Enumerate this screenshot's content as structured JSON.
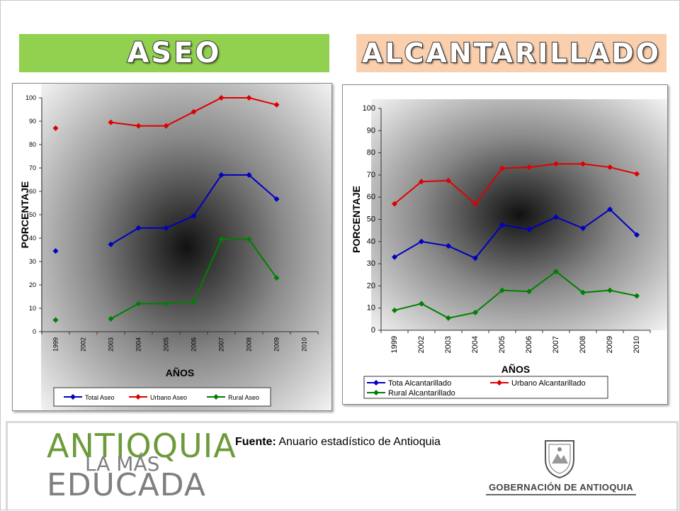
{
  "banners": {
    "left": "ASEO",
    "right": "ALCANTARILLADO"
  },
  "colors": {
    "aseo_banner": "#92d050",
    "alc_banner": "#f9cfae",
    "blue": "#0000c0",
    "red": "#e00000",
    "green": "#008000"
  },
  "chart_data": [
    {
      "type": "line",
      "ylabel": "PORCENTAJE",
      "xlabel": "AÑOS",
      "ylim": [
        0,
        100
      ],
      "yticks": [
        0,
        10,
        20,
        30,
        40,
        50,
        60,
        70,
        80,
        90,
        100
      ],
      "categories": [
        "1999",
        "2002",
        "2003",
        "2004",
        "2005",
        "2006",
        "2007",
        "2008",
        "2009",
        "2010"
      ],
      "series": [
        {
          "name": "Total Aseo",
          "color": "#0000c0",
          "values": [
            34.5,
            null,
            37.3,
            44.3,
            44.3,
            49.5,
            67,
            67,
            56.7,
            null
          ]
        },
        {
          "name": "Urbano Aseo",
          "color": "#e00000",
          "values": [
            87,
            null,
            89.5,
            88,
            88,
            94,
            100,
            100,
            97,
            null
          ]
        },
        {
          "name": "Rural Aseo",
          "color": "#008000",
          "values": [
            5,
            null,
            5.5,
            12,
            12,
            12.8,
            39.5,
            39.5,
            23,
            null
          ]
        }
      ],
      "legend": "bottom",
      "grid": false
    },
    {
      "type": "line",
      "ylabel": "PORCENTAJE",
      "xlabel": "AÑOS",
      "ylim": [
        0,
        100
      ],
      "yticks": [
        0,
        10,
        20,
        30,
        40,
        50,
        60,
        70,
        80,
        90,
        100
      ],
      "categories": [
        "1999",
        "2002",
        "2003",
        "2004",
        "2005",
        "2006",
        "2007",
        "2008",
        "2009",
        "2010"
      ],
      "series": [
        {
          "name": "Tota Alcantarillado",
          "color": "#0000c0",
          "values": [
            33,
            40,
            38,
            32.5,
            47.5,
            45.5,
            51,
            46,
            54.5,
            43
          ]
        },
        {
          "name": "Urbano Alcantarillado",
          "color": "#e00000",
          "values": [
            57,
            67,
            67.5,
            57,
            73,
            73.5,
            75,
            75,
            73.5,
            70.5
          ]
        },
        {
          "name": "Rural Alcantarillado",
          "color": "#008000",
          "values": [
            9,
            12,
            5.5,
            8,
            18,
            17.5,
            26.5,
            17,
            18,
            15.5
          ]
        }
      ],
      "legend": "bottom",
      "grid": false
    }
  ],
  "footer": {
    "logo_line1": "ANTIOQUIA",
    "logo_line2": "LA MÁS",
    "logo_line3": "EDUCADA",
    "source_label": "Fuente:",
    "source_text": " Anuario estadístico de Antioquia",
    "gob_text": "GOBERNACIÓN DE ANTIOQUIA",
    "seal_icon": "coat-of-arms-icon"
  }
}
